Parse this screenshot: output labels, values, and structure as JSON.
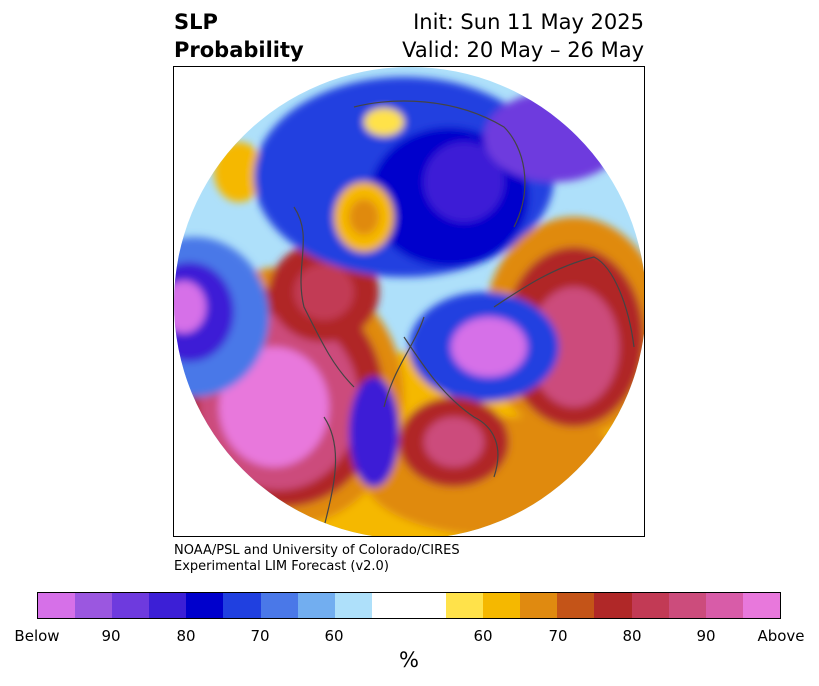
{
  "title": {
    "left_line1": "SLP",
    "left_line2": "Probability",
    "right_line1": "Init: Sun 11 May 2025",
    "right_line2": "Valid: 20 May – 26 May"
  },
  "credit": {
    "line1": "NOAA/PSL and University of Colorado/CIRES",
    "line2": "Experimental LIM Forecast (v2.0)"
  },
  "colorbar": {
    "colors": [
      "#d670e8",
      "#9b57e0",
      "#6e3ade",
      "#3c1fd6",
      "#0000cc",
      "#2040e0",
      "#4a78e8",
      "#72aef0",
      "#aee0fa",
      "#ffffff",
      "#ffffff",
      "#ffe24a",
      "#f5b800",
      "#e08a10",
      "#c45418",
      "#b02828",
      "#c23a55",
      "#cc4c7c",
      "#d85ca8",
      "#e878dc"
    ],
    "tick_labels": [
      "Below",
      "90",
      "80",
      "70",
      "60",
      "60",
      "70",
      "80",
      "90",
      "Above"
    ],
    "unit": "%"
  },
  "map": {
    "projection": "north-polar-stereographic",
    "features": "sea-level-pressure-probability-shading"
  }
}
